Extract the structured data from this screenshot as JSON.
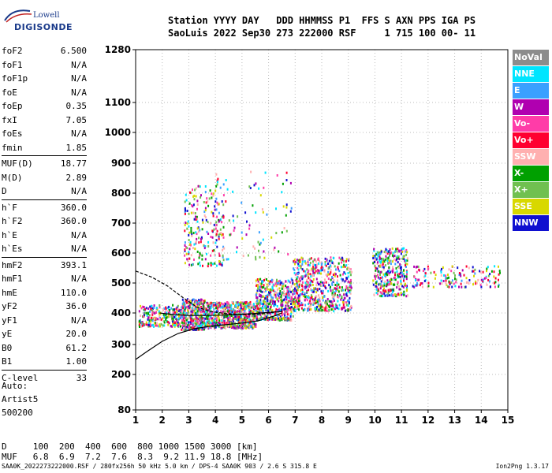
{
  "logo": {
    "line1": "Lowell",
    "line2": "DIGISONDE"
  },
  "header": {
    "line1": "Station YYYY DAY   DDD HHMMSS P1  FFS S AXN PPS IGA PS",
    "line2": "SaoLuis 2022 Sep30 273 222000 RSF     1 715 100 00- 11"
  },
  "params": [
    [
      {
        "label": "foF2",
        "value": "6.500"
      },
      {
        "label": "foF1",
        "value": "N/A"
      },
      {
        "label": "foF1p",
        "value": "N/A"
      },
      {
        "label": "foE",
        "value": "N/A"
      },
      {
        "label": "foEp",
        "value": "0.35"
      },
      {
        "label": "fxI",
        "value": "7.05"
      },
      {
        "label": "foEs",
        "value": "N/A"
      },
      {
        "label": "fmin",
        "value": "1.85"
      }
    ],
    [
      {
        "label": "MUF(D)",
        "value": "18.77"
      },
      {
        "label": "M(D)",
        "value": "2.89"
      },
      {
        "label": "D",
        "value": "N/A"
      }
    ],
    [
      {
        "label": "h`F",
        "value": "360.0"
      },
      {
        "label": "h`F2",
        "value": "360.0"
      },
      {
        "label": "h`E",
        "value": "N/A"
      },
      {
        "label": "h`Es",
        "value": "N/A"
      }
    ],
    [
      {
        "label": "hmF2",
        "value": "393.1"
      },
      {
        "label": "hmF1",
        "value": "N/A"
      },
      {
        "label": "hmE",
        "value": "110.0"
      },
      {
        "label": "yF2",
        "value": "36.0"
      },
      {
        "label": "yF1",
        "value": "N/A"
      },
      {
        "label": "yE",
        "value": "20.0"
      },
      {
        "label": "B0",
        "value": "61.2"
      },
      {
        "label": "B1",
        "value": "1.00"
      }
    ],
    [
      {
        "label": "C-level",
        "value": "33"
      }
    ]
  ],
  "auto": {
    "line1": "Auto:",
    "line2": "Artist5",
    "line3": "500200"
  },
  "muf_table": {
    "d_line": "D     100  200  400  600  800 1000 1500 3000 [km]",
    "muf_line": "MUF   6.8  6.9  7.2  7.6  8.3  9.2 11.9 18.8 [MHz]"
  },
  "footer": {
    "left": "SAA0K_2022273222000.RSF / 280fx256h 50 kHz 5.0 km / DPS-4 SAA0K 903 / 2.6 S 315.8 E",
    "right": "Ion2Png 1.3.17"
  },
  "legend": [
    {
      "label": "NoVal",
      "color": "#8c8c8c"
    },
    {
      "label": "NNE",
      "color": "#00e5ff"
    },
    {
      "label": "E",
      "color": "#3aa0ff"
    },
    {
      "label": "W",
      "color": "#b000b0"
    },
    {
      "label": "Vo-",
      "color": "#ff3ca8"
    },
    {
      "label": "Vo+",
      "color": "#ff0030"
    },
    {
      "label": "SSW",
      "color": "#ffb0b0"
    },
    {
      "label": "X-",
      "color": "#00a000"
    },
    {
      "label": "X+",
      "color": "#70c050"
    },
    {
      "label": "SSE",
      "color": "#d8d800"
    },
    {
      "label": "NNW",
      "color": "#1010d0"
    }
  ],
  "chart_data": {
    "type": "scatter",
    "x_ticks": [
      "1",
      "2",
      "3",
      "4",
      "5",
      "6",
      "7",
      "8",
      "9",
      "10",
      "11",
      "12",
      "13",
      "14",
      "15"
    ],
    "y_ticks": [
      "80",
      "200",
      "300",
      "400",
      "500",
      "600",
      "700",
      "800",
      "900",
      "1000",
      "1100",
      "1280"
    ],
    "xlim": [
      1,
      15
    ],
    "ylim": [
      80,
      1280
    ],
    "scatter_clusters": [
      {
        "x": [
          1.1,
          2.7
        ],
        "y": [
          360,
          430
        ],
        "n": 250
      },
      {
        "x": [
          2.7,
          3.6
        ],
        "y": [
          350,
          450
        ],
        "n": 400
      },
      {
        "x": [
          3.6,
          5.5
        ],
        "y": [
          355,
          440
        ],
        "n": 650
      },
      {
        "x": [
          5.5,
          6.9
        ],
        "y": [
          380,
          520
        ],
        "n": 450
      },
      {
        "x": [
          6.9,
          9.1
        ],
        "y": [
          410,
          590
        ],
        "n": 600
      },
      {
        "x": [
          9.9,
          11.2
        ],
        "y": [
          460,
          620
        ],
        "n": 350
      },
      {
        "x": [
          11.4,
          14.7
        ],
        "y": [
          490,
          560
        ],
        "n": 150
      },
      {
        "x": [
          2.8,
          4.3
        ],
        "y": [
          560,
          830
        ],
        "n": 220
      },
      {
        "x": [
          4.0,
          6.9
        ],
        "y": [
          580,
          880
        ],
        "n": 90
      }
    ],
    "cluster_colors": [
      "#ff3ca8",
      "#ff0030",
      "#b000b0",
      "#3aa0ff",
      "#00a000",
      "#d8d800",
      "#00e5ff",
      "#1010d0",
      "#ffb0b0",
      "#70c050"
    ],
    "profile_curves": [
      {
        "name": "",
        "x": [
          1.0,
          1.4,
          2.0,
          2.6,
          3.2,
          3.8,
          4.4,
          5.0,
          5.6,
          6.2,
          6.5
        ],
        "y": [
          250,
          275,
          310,
          335,
          350,
          358,
          363,
          368,
          375,
          390,
          400
        ]
      },
      {
        "name": "",
        "x": [
          1.0,
          1.6,
          2.2,
          2.8,
          3.3,
          3.8,
          4.4,
          5.0,
          5.6,
          6.0,
          6.5
        ],
        "y": [
          540,
          520,
          490,
          450,
          420,
          405,
          398,
          395,
          396,
          400,
          405
        ]
      },
      {
        "name": "",
        "x": [
          1.9,
          2.4,
          3.0,
          3.6,
          4.2,
          4.8,
          5.4,
          6.0,
          6.5
        ],
        "y": [
          400,
          395,
          392,
          392,
          393,
          395,
          398,
          402,
          405
        ]
      }
    ]
  }
}
